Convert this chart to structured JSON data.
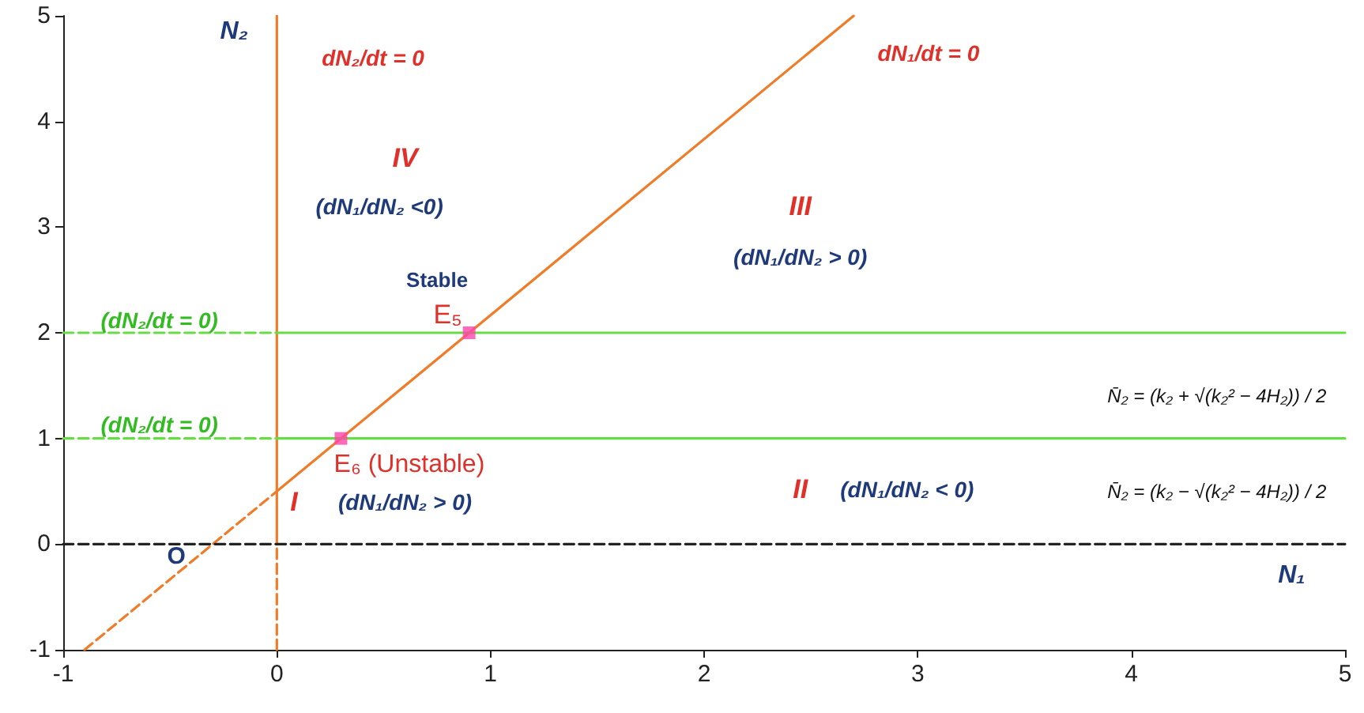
{
  "chart_data": {
    "type": "line",
    "xlim": [
      -1,
      5
    ],
    "ylim": [
      -1,
      5
    ],
    "xticks": [
      -1,
      0,
      1,
      2,
      3,
      4,
      5
    ],
    "yticks": [
      -1,
      0,
      1,
      2,
      3,
      4,
      5
    ],
    "grid": false,
    "series": [
      {
        "color": "#f07c2a",
        "x": [
          -0.9,
          0
        ],
        "values": [
          -1,
          0.5
        ],
        "line_style": "dashed",
        "marker": "none"
      },
      {
        "color": "#f07c2a",
        "x": [
          0,
          2.7
        ],
        "values": [
          0.5,
          5
        ],
        "line_style": "solid",
        "marker": "none"
      },
      {
        "color": "#f07c2a",
        "x": [
          0,
          0
        ],
        "values": [
          0,
          5
        ],
        "line_style": "solid",
        "marker": "none"
      },
      {
        "color": "#f07c2a",
        "x": [
          0,
          0
        ],
        "values": [
          -1,
          0
        ],
        "line_style": "dashed",
        "marker": "none"
      },
      {
        "color": "#66dd44",
        "x": [
          -1,
          0
        ],
        "values": [
          2,
          2
        ],
        "line_style": "dashed",
        "marker": "none"
      },
      {
        "color": "#66dd44",
        "x": [
          0,
          5
        ],
        "values": [
          2,
          2
        ],
        "line_style": "solid",
        "marker": "none"
      },
      {
        "color": "#66dd44",
        "x": [
          -1,
          0
        ],
        "values": [
          1,
          1
        ],
        "line_style": "dashed",
        "marker": "none"
      },
      {
        "color": "#66dd44",
        "x": [
          0,
          5
        ],
        "values": [
          1,
          1
        ],
        "line_style": "solid",
        "marker": "none"
      },
      {
        "color": "#222222",
        "x": [
          -1,
          5
        ],
        "values": [
          0,
          0
        ],
        "line_style": "dashed",
        "marker": "none"
      },
      {
        "type": "scatter",
        "color": "#ff44aa",
        "x": [
          0.9,
          0.3
        ],
        "values": [
          2,
          1
        ],
        "marker": "square"
      }
    ],
    "annotations": [
      "N₂",
      "N₁",
      "O",
      "dN₂/dt = 0",
      "dN₁/dt = 0",
      "IV",
      "(dN₁/dN₂ <0)",
      "III",
      "(dN₁/dN₂ > 0)",
      "Stable",
      "E₅",
      "E₆ (Unstable)",
      "I",
      "(dN₁/dN₂ > 0)",
      "II",
      "(dN₁/dN₂ < 0)",
      "(dN₂/dt = 0)",
      "(dN₂/dt = 0)",
      "N̄₂ = (k₂ + √(k₂² − 4H₂)) / 2",
      "N̄₂ = (k₂ − √(k₂² − 4H₂)) / 2"
    ]
  }
}
